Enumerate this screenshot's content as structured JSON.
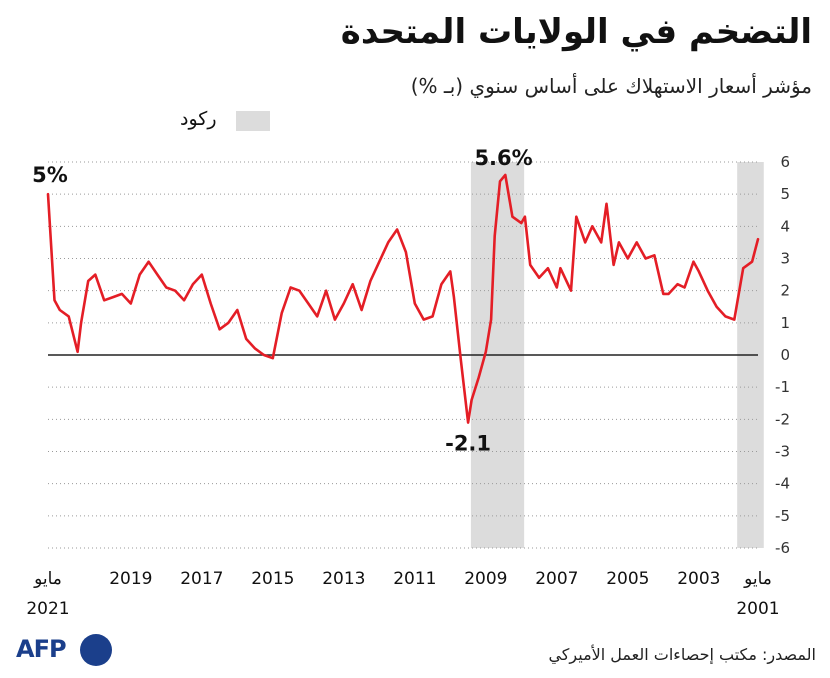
{
  "title": "التضخم في الولايات المتحدة",
  "subtitle": "مؤشر أسعار الاستهلاك على أساس سنوي (بـ %)",
  "legend": {
    "label": "ركود",
    "swatch_color": "#dcdcdc"
  },
  "source": "المصدر: مكتب إحصاءات العمل الأميركي",
  "logo": {
    "text": "AFP",
    "color": "#1b3f8b"
  },
  "chart_data": {
    "type": "line",
    "title": "التضخم في الولايات المتحدة",
    "ylabel": "مؤشر أسعار الاستهلاك على أساس سنوي (بـ %)",
    "ylim": [
      -6,
      6
    ],
    "yticks": [
      6,
      5,
      4,
      3,
      2,
      1,
      0,
      -1,
      -2,
      -3,
      -4,
      -5,
      -6
    ],
    "x_range": [
      2001.333,
      2021.333
    ],
    "x_axis_reversed": true,
    "x_ticks": [
      {
        "x": 2001.333,
        "label": "مايو",
        "sublabel": "2001"
      },
      {
        "x": 2003,
        "label": "2003"
      },
      {
        "x": 2005,
        "label": "2005"
      },
      {
        "x": 2007,
        "label": "2007"
      },
      {
        "x": 2009,
        "label": "2009"
      },
      {
        "x": 2011,
        "label": "2011"
      },
      {
        "x": 2013,
        "label": "2013"
      },
      {
        "x": 2015,
        "label": "2015"
      },
      {
        "x": 2017,
        "label": "2017"
      },
      {
        "x": 2019,
        "label": "2019"
      },
      {
        "x": 2021.333,
        "label": "مايو",
        "sublabel": "2021"
      }
    ],
    "recessions": [
      {
        "start": 2001.17,
        "end": 2001.92
      },
      {
        "start": 2007.92,
        "end": 2009.42
      }
    ],
    "annotations": [
      {
        "x": 2021.333,
        "y": 5.0,
        "text": "5%",
        "position": "above-left"
      },
      {
        "x": 2008.5,
        "y": 5.6,
        "text": "5.6%",
        "position": "above"
      },
      {
        "x": 2009.5,
        "y": -2.1,
        "text": "-2.1",
        "position": "below"
      }
    ],
    "series": [
      {
        "name": "CPI YoY",
        "color": "#e41e26",
        "x": [
          2001.333,
          2001.5,
          2001.75,
          2002.0,
          2002.25,
          2002.5,
          2002.75,
          2003.0,
          2003.15,
          2003.4,
          2003.6,
          2003.85,
          2004.0,
          2004.25,
          2004.5,
          2004.75,
          2005.0,
          2005.25,
          2005.4,
          2005.6,
          2005.75,
          2006.0,
          2006.2,
          2006.45,
          2006.6,
          2006.9,
          2007.0,
          2007.25,
          2007.5,
          2007.75,
          2007.9,
          2008.0,
          2008.25,
          2008.45,
          2008.6,
          2008.75,
          2008.85,
          2009.0,
          2009.2,
          2009.4,
          2009.5,
          2009.7,
          2009.9,
          2010.0,
          2010.25,
          2010.5,
          2010.75,
          2011.0,
          2011.25,
          2011.5,
          2011.75,
          2012.0,
          2012.25,
          2012.5,
          2012.75,
          2013.0,
          2013.25,
          2013.5,
          2013.75,
          2014.0,
          2014.25,
          2014.5,
          2014.75,
          2015.0,
          2015.25,
          2015.5,
          2015.75,
          2016.0,
          2016.25,
          2016.5,
          2016.75,
          2017.0,
          2017.25,
          2017.5,
          2017.75,
          2018.0,
          2018.25,
          2018.5,
          2018.75,
          2019.0,
          2019.25,
          2019.5,
          2019.75,
          2020.0,
          2020.2,
          2020.4,
          2020.5,
          2020.75,
          2021.0,
          2021.15,
          2021.333
        ],
        "values": [
          3.6,
          2.9,
          2.7,
          1.1,
          1.2,
          1.5,
          2.0,
          2.6,
          2.9,
          2.1,
          2.2,
          1.9,
          1.9,
          3.1,
          3.0,
          3.5,
          3.0,
          3.5,
          2.8,
          4.7,
          3.5,
          4.0,
          3.5,
          4.3,
          2.0,
          2.7,
          2.1,
          2.7,
          2.4,
          2.8,
          4.3,
          4.1,
          4.3,
          5.6,
          5.4,
          3.7,
          1.1,
          0.1,
          -0.7,
          -1.4,
          -2.1,
          -0.2,
          1.8,
          2.6,
          2.2,
          1.2,
          1.1,
          1.6,
          3.2,
          3.9,
          3.5,
          2.9,
          2.3,
          1.4,
          2.2,
          1.6,
          1.1,
          2.0,
          1.2,
          1.6,
          2.0,
          2.1,
          1.3,
          -0.1,
          0.0,
          0.2,
          0.5,
          1.4,
          1.0,
          0.8,
          1.6,
          2.5,
          2.2,
          1.7,
          2.0,
          2.1,
          2.5,
          2.9,
          2.5,
          1.6,
          1.9,
          1.8,
          1.7,
          2.5,
          2.3,
          1.0,
          0.1,
          1.2,
          1.4,
          1.7,
          5.0
        ]
      }
    ]
  }
}
